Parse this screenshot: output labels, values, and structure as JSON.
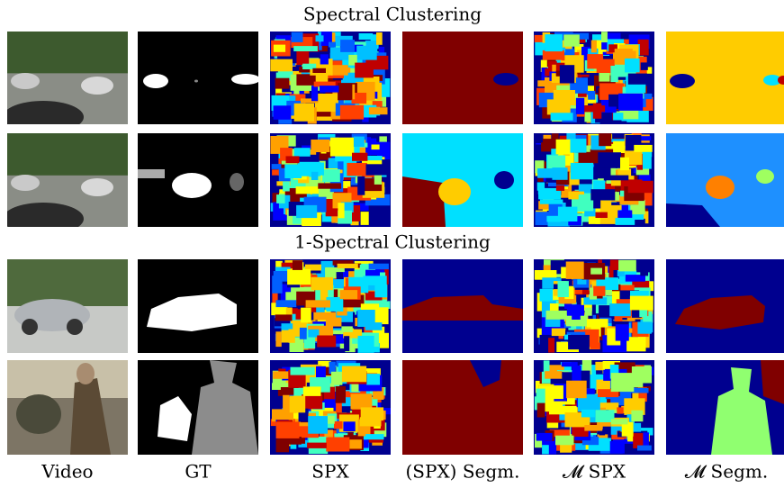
{
  "titles": [
    "Spectral Clustering",
    "1-Spectral Clustering"
  ],
  "column_labels": [
    "Video",
    "GT",
    "SPX",
    "(SPX) Segm.",
    "𝓜 SPX",
    "𝓜 Segm."
  ]
}
